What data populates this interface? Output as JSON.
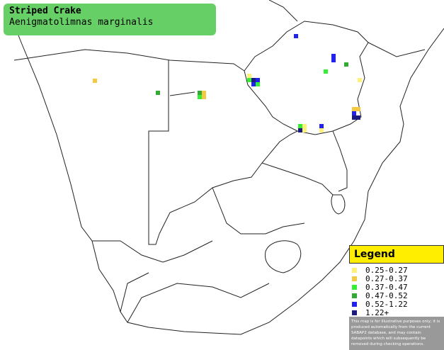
{
  "header": {
    "title": "Striped Crake",
    "subtitle": "Aenigmatolimnas marginalis"
  },
  "legend": {
    "title": "Legend",
    "items": [
      {
        "label": "0.25-0.27",
        "color": "#fff077"
      },
      {
        "label": "0.27-0.37",
        "color": "#f5c842"
      },
      {
        "label": "0.37-0.47",
        "color": "#33ee33"
      },
      {
        "label": "0.47-0.52",
        "color": "#33aa33"
      },
      {
        "label": "0.52-1.22",
        "color": "#2222ee"
      },
      {
        "label": "1.22+",
        "color": "#1a1a80"
      }
    ],
    "note": "This map is for illustrative purposes only; it is produced automatically from the current SABAP2 database, and may contain datapoints which will subsequently be removed during checking operations."
  }
}
